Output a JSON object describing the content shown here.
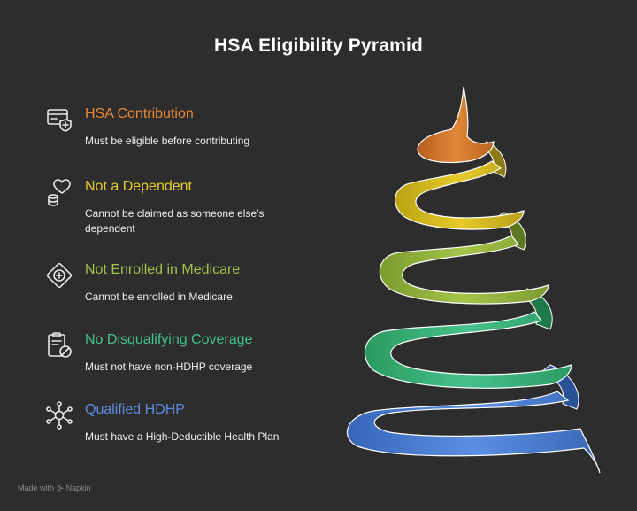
{
  "title": "HSA Eligibility Pyramid",
  "items": [
    {
      "heading": "HSA Contribution",
      "description": "Must be eligible before contributing",
      "icon": "credit-card-shield-icon",
      "color": "#e8893a"
    },
    {
      "heading": "Not a Dependent",
      "description": "Cannot be claimed as someone else's dependent",
      "icon": "heart-coins-icon",
      "color": "#e9cd2e"
    },
    {
      "heading": "Not Enrolled in Medicare",
      "description": "Cannot be enrolled in Medicare",
      "icon": "medical-diamond-icon",
      "color": "#a3c44a"
    },
    {
      "heading": "No Disqualifying Coverage",
      "description": "Must not have non-HDHP coverage",
      "icon": "clipboard-ban-icon",
      "color": "#44c28a"
    },
    {
      "heading": "Qualified HDHP",
      "description": "Must have a High-Deductible Health Plan",
      "icon": "network-hub-icon",
      "color": "#5b8ee3"
    }
  ],
  "footer": {
    "made_with": "Made with",
    "brand": "Napkin"
  }
}
